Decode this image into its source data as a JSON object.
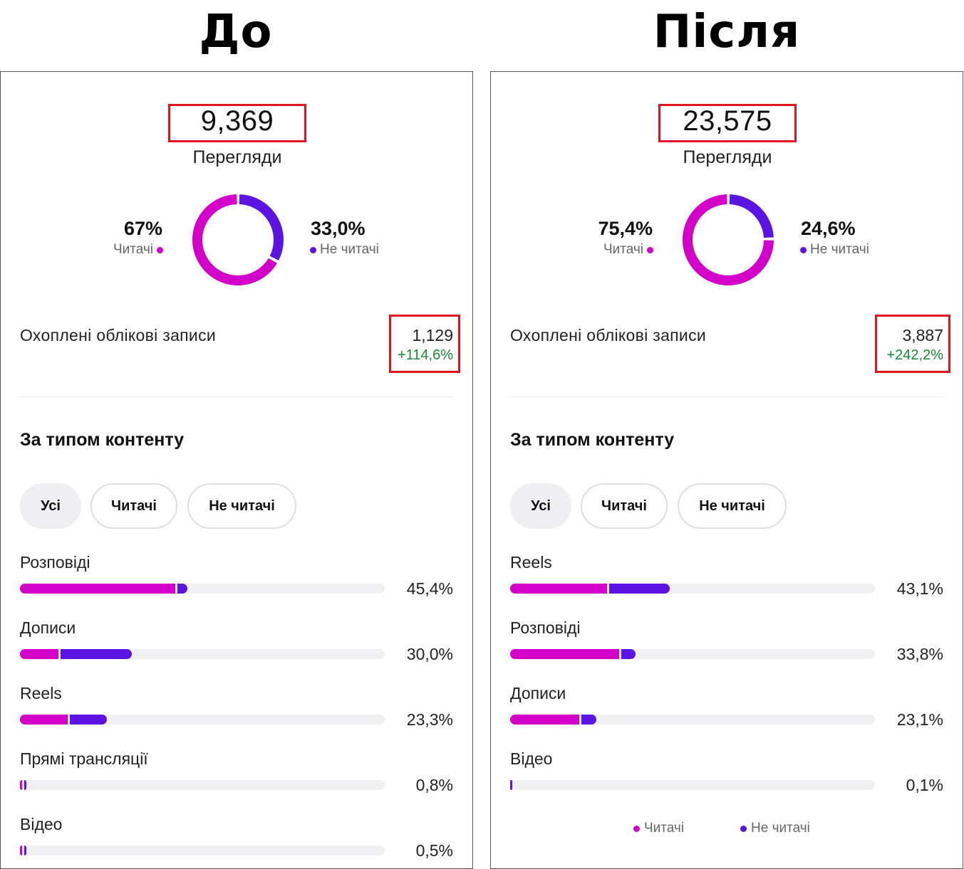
{
  "headings": {
    "before": "До",
    "after": "Після"
  },
  "colors": {
    "followers": "#d200c8",
    "non_followers": "#5b14e2",
    "highlight_box": "#e2141f",
    "growth": "#178a37"
  },
  "before": {
    "views_value": "9,369",
    "views_label": "Перегляди",
    "followers_pct": "67%",
    "followers_label": "Читачі",
    "non_followers_pct": "33,0%",
    "non_followers_label": "Не читачі",
    "donut_followers_fraction": 0.67,
    "reach_label": "Охоплені облікові записи",
    "reach_value": "1,129",
    "reach_change": "+114,6%",
    "section_title": "За типом контенту",
    "tabs": [
      "Усі",
      "Читачі",
      "Не читачі"
    ],
    "rows": [
      {
        "label": "Розповіді",
        "pct": "45,4%",
        "followers_share": 0.425,
        "non_followers_share": 0.029
      },
      {
        "label": "Дописи",
        "pct": "30,0%",
        "followers_share": 0.105,
        "non_followers_share": 0.195
      },
      {
        "label": "Reels",
        "pct": "23,3%",
        "followers_share": 0.13,
        "non_followers_share": 0.103
      },
      {
        "label": "Прямі трансляції",
        "pct": "0,8%",
        "followers_share": 0.004,
        "non_followers_share": 0.004
      },
      {
        "label": "Відео",
        "pct": "0,5%",
        "followers_share": 0.002,
        "non_followers_share": 0.003
      }
    ]
  },
  "after": {
    "views_value": "23,575",
    "views_label": "Перегляди",
    "followers_pct": "75,4%",
    "followers_label": "Читачі",
    "non_followers_pct": "24,6%",
    "non_followers_label": "Не читачі",
    "donut_followers_fraction": 0.754,
    "reach_label": "Охоплені облікові записи",
    "reach_value": "3,887",
    "reach_change": "+242,2%",
    "section_title": "За типом контенту",
    "tabs": [
      "Усі",
      "Читачі",
      "Не читачі"
    ],
    "rows": [
      {
        "label": "Reels",
        "pct": "43,1%",
        "followers_share": 0.265,
        "non_followers_share": 0.166
      },
      {
        "label": "Розповіді",
        "pct": "33,8%",
        "followers_share": 0.298,
        "non_followers_share": 0.04
      },
      {
        "label": "Дописи",
        "pct": "23,1%",
        "followers_share": 0.19,
        "non_followers_share": 0.041
      },
      {
        "label": "Відео",
        "pct": "0,1%",
        "followers_share": 0.0,
        "non_followers_share": 0.001
      }
    ],
    "legend": {
      "followers": "Читачі",
      "non_followers": "Не читачі"
    }
  }
}
